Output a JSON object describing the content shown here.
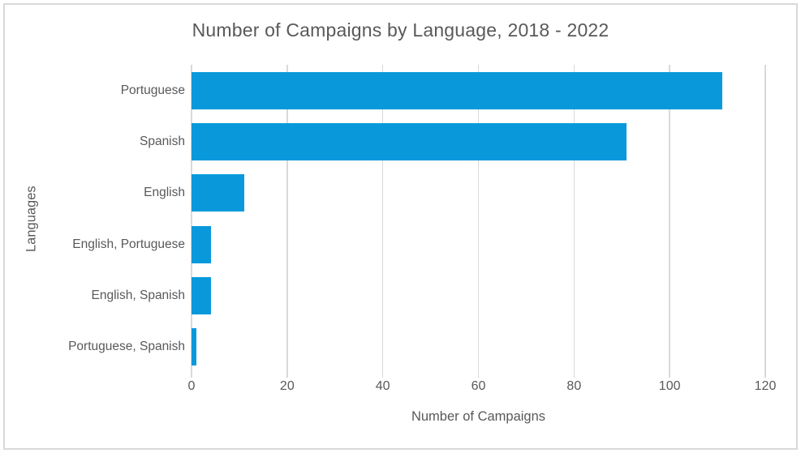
{
  "chart_data": {
    "type": "bar",
    "orientation": "horizontal",
    "title": "Number of Campaigns by Language, 2018 - 2022",
    "xlabel": "Number of Campaigns",
    "ylabel": "Languages",
    "categories": [
      "Portuguese",
      "Spanish",
      "English",
      "English, Portuguese",
      "English, Spanish",
      "Portuguese, Spanish"
    ],
    "values": [
      111,
      91,
      11,
      4,
      4,
      1
    ],
    "xlim": [
      0,
      120
    ],
    "xticks": [
      0,
      20,
      40,
      60,
      80,
      100,
      120
    ],
    "grid": "vertical-gridlines-on",
    "legend": "none",
    "colors": {
      "bar": "#0999db",
      "gridline": "#d9d9d9",
      "frame_border": "#d9d9d9",
      "text": "#595959",
      "background": "#ffffff"
    }
  }
}
